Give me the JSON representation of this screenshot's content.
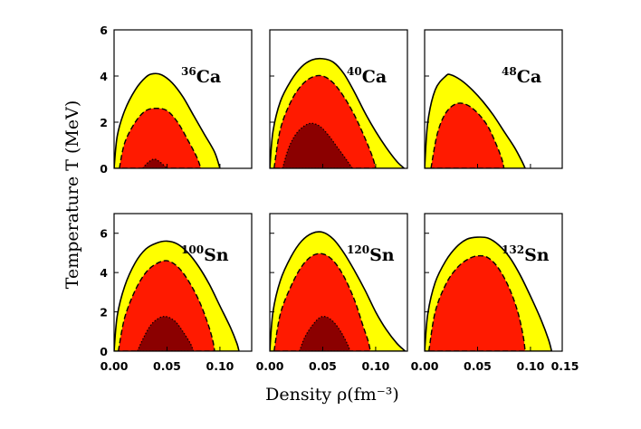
{
  "chart_data": {
    "type": "area",
    "title": "",
    "xlabel": "Density ρ(fm⁻³)",
    "ylabel": "Temperature T (MeV)",
    "xlim": [
      0.0,
      0.13
    ],
    "colors": {
      "outer": "#ffff00",
      "middle": "#ff1a00",
      "inner": "#8b0000",
      "line": "#000000"
    },
    "rows": [
      {
        "yticks": [
          0,
          2,
          4,
          6
        ],
        "ylim": [
          0,
          6
        ],
        "xticks": []
      },
      {
        "yticks": [
          0,
          2,
          4,
          6
        ],
        "ylim": [
          0,
          7
        ],
        "xticks": [
          "0.00",
          "0.05",
          "0.10"
        ]
      }
    ],
    "extra_xtick": "0.15",
    "panels": [
      {
        "row": 0,
        "col": 0,
        "mass": "36",
        "element": "Ca",
        "regions": [
          {
            "name": "outer",
            "points": [
              [
                0.0,
                0.0
              ],
              [
                0.003,
                1.4
              ],
              [
                0.01,
                2.5
              ],
              [
                0.02,
                3.4
              ],
              [
                0.03,
                3.95
              ],
              [
                0.037,
                4.1
              ],
              [
                0.045,
                4.05
              ],
              [
                0.055,
                3.7
              ],
              [
                0.065,
                3.1
              ],
              [
                0.075,
                2.3
              ],
              [
                0.085,
                1.5
              ],
              [
                0.095,
                0.7
              ],
              [
                0.1,
                0.0
              ]
            ]
          },
          {
            "name": "middle",
            "points": [
              [
                0.005,
                0.0
              ],
              [
                0.01,
                1.1
              ],
              [
                0.02,
                2.0
              ],
              [
                0.03,
                2.5
              ],
              [
                0.04,
                2.6
              ],
              [
                0.05,
                2.5
              ],
              [
                0.06,
                2.0
              ],
              [
                0.07,
                1.2
              ],
              [
                0.078,
                0.5
              ],
              [
                0.082,
                0.0
              ]
            ]
          },
          {
            "name": "inner",
            "points": [
              [
                0.027,
                0.0
              ],
              [
                0.032,
                0.25
              ],
              [
                0.038,
                0.4
              ],
              [
                0.044,
                0.25
              ],
              [
                0.05,
                0.0
              ]
            ]
          }
        ]
      },
      {
        "row": 0,
        "col": 1,
        "mass": "40",
        "element": "Ca",
        "regions": [
          {
            "name": "outer",
            "points": [
              [
                0.0,
                0.0
              ],
              [
                0.003,
                1.6
              ],
              [
                0.01,
                2.9
              ],
              [
                0.02,
                3.8
              ],
              [
                0.03,
                4.4
              ],
              [
                0.04,
                4.7
              ],
              [
                0.05,
                4.75
              ],
              [
                0.06,
                4.6
              ],
              [
                0.07,
                4.1
              ],
              [
                0.08,
                3.3
              ],
              [
                0.09,
                2.4
              ],
              [
                0.1,
                1.6
              ],
              [
                0.11,
                0.9
              ],
              [
                0.12,
                0.3
              ],
              [
                0.127,
                0.0
              ]
            ]
          },
          {
            "name": "middle",
            "points": [
              [
                0.004,
                0.0
              ],
              [
                0.01,
                1.7
              ],
              [
                0.02,
                2.9
              ],
              [
                0.03,
                3.6
              ],
              [
                0.04,
                3.95
              ],
              [
                0.05,
                4.0
              ],
              [
                0.06,
                3.7
              ],
              [
                0.07,
                3.1
              ],
              [
                0.08,
                2.3
              ],
              [
                0.09,
                1.3
              ],
              [
                0.097,
                0.5
              ],
              [
                0.1,
                0.0
              ]
            ]
          },
          {
            "name": "inner",
            "points": [
              [
                0.012,
                0.0
              ],
              [
                0.018,
                0.9
              ],
              [
                0.025,
                1.5
              ],
              [
                0.033,
                1.85
              ],
              [
                0.04,
                1.95
              ],
              [
                0.048,
                1.8
              ],
              [
                0.056,
                1.4
              ],
              [
                0.064,
                0.9
              ],
              [
                0.072,
                0.4
              ],
              [
                0.078,
                0.0
              ]
            ]
          }
        ]
      },
      {
        "row": 0,
        "col": 2,
        "mass": "48",
        "element": "Ca",
        "regions": [
          {
            "name": "outer",
            "points": [
              [
                0.0,
                0.0
              ],
              [
                0.003,
                2.0
              ],
              [
                0.01,
                3.4
              ],
              [
                0.02,
                4.0
              ],
              [
                0.025,
                4.05
              ],
              [
                0.035,
                3.8
              ],
              [
                0.045,
                3.4
              ],
              [
                0.055,
                2.9
              ],
              [
                0.065,
                2.3
              ],
              [
                0.075,
                1.6
              ],
              [
                0.085,
                0.9
              ],
              [
                0.092,
                0.3
              ],
              [
                0.095,
                0.0
              ]
            ]
          },
          {
            "name": "middle",
            "points": [
              [
                0.006,
                0.0
              ],
              [
                0.012,
                1.5
              ],
              [
                0.02,
                2.4
              ],
              [
                0.03,
                2.8
              ],
              [
                0.04,
                2.75
              ],
              [
                0.05,
                2.4
              ],
              [
                0.06,
                1.8
              ],
              [
                0.068,
                1.0
              ],
              [
                0.073,
                0.4
              ],
              [
                0.075,
                0.0
              ]
            ]
          }
        ]
      },
      {
        "row": 1,
        "col": 0,
        "mass": "100",
        "element": "Sn",
        "regions": [
          {
            "name": "outer",
            "points": [
              [
                0.0,
                0.0
              ],
              [
                0.003,
                1.8
              ],
              [
                0.01,
                3.3
              ],
              [
                0.02,
                4.5
              ],
              [
                0.03,
                5.2
              ],
              [
                0.04,
                5.5
              ],
              [
                0.05,
                5.6
              ],
              [
                0.06,
                5.45
              ],
              [
                0.07,
                5.0
              ],
              [
                0.08,
                4.3
              ],
              [
                0.09,
                3.4
              ],
              [
                0.1,
                2.3
              ],
              [
                0.11,
                1.2
              ],
              [
                0.116,
                0.4
              ],
              [
                0.118,
                0.0
              ]
            ]
          },
          {
            "name": "middle",
            "points": [
              [
                0.004,
                0.0
              ],
              [
                0.01,
                1.7
              ],
              [
                0.02,
                3.1
              ],
              [
                0.03,
                4.0
              ],
              [
                0.04,
                4.45
              ],
              [
                0.05,
                4.6
              ],
              [
                0.06,
                4.3
              ],
              [
                0.07,
                3.6
              ],
              [
                0.08,
                2.6
              ],
              [
                0.088,
                1.5
              ],
              [
                0.093,
                0.6
              ],
              [
                0.095,
                0.0
              ]
            ]
          },
          {
            "name": "inner",
            "points": [
              [
                0.022,
                0.0
              ],
              [
                0.028,
                0.7
              ],
              [
                0.035,
                1.35
              ],
              [
                0.043,
                1.7
              ],
              [
                0.05,
                1.75
              ],
              [
                0.058,
                1.5
              ],
              [
                0.065,
                1.0
              ],
              [
                0.072,
                0.4
              ],
              [
                0.075,
                0.0
              ]
            ]
          }
        ]
      },
      {
        "row": 1,
        "col": 1,
        "mass": "120",
        "element": "Sn",
        "regions": [
          {
            "name": "outer",
            "points": [
              [
                0.0,
                0.0
              ],
              [
                0.003,
                2.0
              ],
              [
                0.01,
                3.6
              ],
              [
                0.02,
                4.8
              ],
              [
                0.03,
                5.6
              ],
              [
                0.04,
                6.0
              ],
              [
                0.05,
                6.05
              ],
              [
                0.06,
                5.7
              ],
              [
                0.07,
                5.0
              ],
              [
                0.08,
                4.1
              ],
              [
                0.09,
                3.1
              ],
              [
                0.1,
                2.0
              ],
              [
                0.11,
                1.1
              ],
              [
                0.12,
                0.4
              ],
              [
                0.128,
                0.0
              ]
            ]
          },
          {
            "name": "middle",
            "points": [
              [
                0.004,
                0.0
              ],
              [
                0.01,
                1.9
              ],
              [
                0.02,
                3.3
              ],
              [
                0.03,
                4.3
              ],
              [
                0.04,
                4.85
              ],
              [
                0.05,
                4.95
              ],
              [
                0.06,
                4.6
              ],
              [
                0.07,
                3.8
              ],
              [
                0.08,
                2.6
              ],
              [
                0.088,
                1.3
              ],
              [
                0.093,
                0.5
              ],
              [
                0.095,
                0.0
              ]
            ]
          },
          {
            "name": "inner",
            "points": [
              [
                0.028,
                0.0
              ],
              [
                0.033,
                0.7
              ],
              [
                0.04,
                1.3
              ],
              [
                0.047,
                1.7
              ],
              [
                0.053,
                1.75
              ],
              [
                0.06,
                1.5
              ],
              [
                0.067,
                1.0
              ],
              [
                0.073,
                0.4
              ],
              [
                0.076,
                0.0
              ]
            ]
          }
        ]
      },
      {
        "row": 1,
        "col": 2,
        "mass": "132",
        "element": "Sn",
        "regions": [
          {
            "name": "outer",
            "points": [
              [
                0.0,
                0.0
              ],
              [
                0.003,
                1.9
              ],
              [
                0.01,
                3.5
              ],
              [
                0.02,
                4.6
              ],
              [
                0.03,
                5.3
              ],
              [
                0.04,
                5.7
              ],
              [
                0.05,
                5.8
              ],
              [
                0.06,
                5.75
              ],
              [
                0.07,
                5.4
              ],
              [
                0.08,
                4.8
              ],
              [
                0.09,
                3.9
              ],
              [
                0.1,
                2.8
              ],
              [
                0.11,
                1.6
              ],
              [
                0.117,
                0.6
              ],
              [
                0.12,
                0.0
              ]
            ]
          },
          {
            "name": "middle",
            "points": [
              [
                0.004,
                0.0
              ],
              [
                0.01,
                2.0
              ],
              [
                0.02,
                3.4
              ],
              [
                0.03,
                4.2
              ],
              [
                0.04,
                4.65
              ],
              [
                0.05,
                4.85
              ],
              [
                0.06,
                4.75
              ],
              [
                0.07,
                4.2
              ],
              [
                0.08,
                3.2
              ],
              [
                0.088,
                2.0
              ],
              [
                0.093,
                0.8
              ],
              [
                0.095,
                0.0
              ]
            ]
          }
        ]
      }
    ]
  }
}
